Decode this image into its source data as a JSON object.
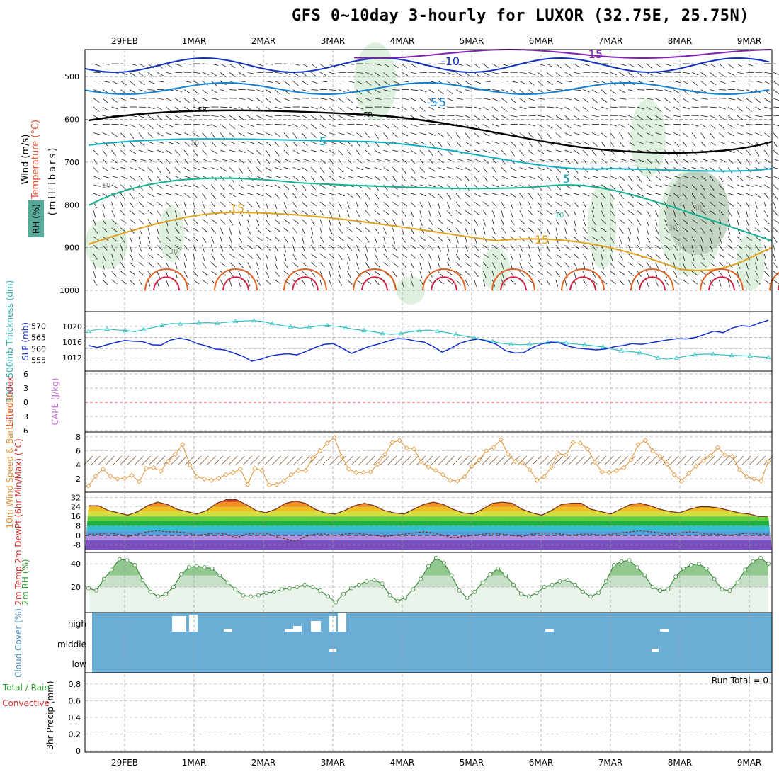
{
  "title": "GFS 0~10day 3-hourly for LUXOR (32.75E, 25.75N)",
  "dates": [
    "29FEB",
    "1MAR",
    "2MAR",
    "3MAR",
    "4MAR",
    "5MAR",
    "6MAR",
    "7MAR",
    "8MAR",
    "9MAR"
  ],
  "colors": {
    "wind_barb": "#000000",
    "temp_warm": "#e0a020",
    "temp_hot": "#e06020",
    "temp_cold": "#1030c0",
    "rh_shade": "#d8eed8",
    "thickness": "#30c0c0",
    "slp": "#1030d0",
    "wind10": "#e09030",
    "cloud": "#6aaed6",
    "rh2m": "#7ab87a"
  },
  "chart_data": {
    "type": "line",
    "upper_air": {
      "ylabel": "(millibars)",
      "side_labels": [
        "Wind (m/s)",
        "Temperature (°C)",
        "RH (%)"
      ],
      "y_ticks": [
        500,
        600,
        700,
        800,
        900,
        1000
      ],
      "contour_labels": [
        "-15",
        "-10",
        "-5",
        "-5",
        "5",
        "5",
        "10",
        "15",
        "15",
        "FR",
        "FR",
        "10",
        "10",
        "30",
        "30",
        "30"
      ]
    },
    "thickness_slp": {
      "left_label": "1000-500mb Thickness (dm)",
      "right_label": "SLP (mb)",
      "left_ticks": [
        555,
        560,
        565,
        570
      ],
      "right_ticks": [
        1012,
        1016,
        1020
      ],
      "thickness_dm": [
        567.8,
        568.6,
        568.8,
        568.4,
        568.2,
        567.6,
        568.6,
        569.4,
        570.4,
        571.2,
        571.1,
        571.2,
        571.5,
        571.6,
        571.4,
        571.8,
        572.2,
        572.4,
        572.5,
        572.1,
        571.2,
        570.4,
        569.8,
        569.2,
        569.6,
        570.2,
        570.4,
        570.0,
        569.4,
        568.6,
        568.2,
        567.6,
        566.8,
        566.4,
        566.8,
        567.6,
        568.1,
        568.3,
        567.8,
        567.2,
        566.4,
        565.6,
        564.9,
        564.0,
        563.2,
        562.4,
        562.0,
        561.8,
        562.0,
        562.3,
        562.8,
        563.1,
        562.6,
        562.1,
        561.8,
        561.3,
        560.8,
        559.9,
        559.1,
        558.8,
        558.3,
        557.3,
        556.0,
        555.4,
        556.0,
        556.7,
        557.4,
        557.7,
        557.6,
        557.3,
        557.1,
        557.0,
        556.8,
        556.4,
        556.2
      ],
      "slp_mb": [
        1015.1,
        1014.6,
        1015.3,
        1015.9,
        1016.4,
        1016.2,
        1016.1,
        1015.3,
        1015.2,
        1016.5,
        1017.0,
        1016.6,
        1015.6,
        1015.0,
        1014.2,
        1014.0,
        1013.2,
        1012.4,
        1011.1,
        1011.6,
        1012.4,
        1012.8,
        1013.0,
        1012.7,
        1013.6,
        1014.6,
        1015.4,
        1015.6,
        1014.4,
        1013.1,
        1014.0,
        1014.9,
        1015.5,
        1016.2,
        1016.9,
        1016.8,
        1016.3,
        1016.0,
        1014.9,
        1013.4,
        1014.4,
        1015.7,
        1016.4,
        1016.8,
        1016.2,
        1015.4,
        1013.8,
        1013.2,
        1013.3,
        1014.6,
        1015.5,
        1016.0,
        1015.7,
        1014.9,
        1014.4,
        1014.2,
        1014.0,
        1014.2,
        1014.8,
        1015.1,
        1015.6,
        1015.4,
        1015.8,
        1016.2,
        1016.6,
        1016.9,
        1016.8,
        1017.2,
        1018.0,
        1018.8,
        1018.4,
        1019.6,
        1020.2,
        1020.0,
        1020.9,
        1021.6
      ]
    },
    "stability": {
      "left_label": "Lifted Index",
      "right_label": "CAPE (J/kg)",
      "left_ticks": [
        -6,
        -3,
        0,
        3,
        6
      ],
      "lifted_index": 0
    },
    "wind10m": {
      "label": "10m Wind Speed & Barbs (m/s)",
      "y_ticks": [
        2,
        4,
        6,
        8
      ],
      "speed": [
        1.0,
        2.4,
        3.4,
        2.4,
        2.0,
        2.1,
        2.5,
        1.6,
        3.5,
        3.6,
        3.1,
        4.5,
        5.5,
        6.9,
        4.0,
        2.3,
        2.0,
        1.8,
        2.1,
        2.6,
        2.9,
        3.4,
        1.2,
        3.5,
        3.2,
        1.1,
        1.2,
        1.7,
        2.6,
        3.2,
        3.2,
        5.0,
        6.0,
        7.1,
        7.9,
        5.2,
        3.4,
        2.9,
        2.9,
        3.0,
        4.1,
        5.5,
        7.2,
        7.5,
        6.4,
        6.3,
        4.4,
        3.7,
        3.2,
        2.6,
        1.8,
        1.7,
        2.3,
        3.8,
        4.7,
        6.0,
        6.5,
        7.6,
        5.5,
        4.5,
        4.3,
        3.3,
        1.8,
        2.3,
        3.7,
        5.6,
        5.4,
        7.2,
        7.1,
        6.3,
        4.4,
        3.0,
        2.9,
        3.2,
        3.6,
        4.7,
        6.9,
        7.5,
        6.0,
        5.2,
        4.1,
        2.6,
        1.7,
        2.8,
        3.8,
        4.6,
        5.3,
        6.5,
        5.4,
        5.2,
        3.3,
        2.3,
        2.0,
        1.7,
        4.5
      ]
    },
    "temp2m": {
      "label": "2m Temp 2m DewPt (6hr Min/Max) (°C)",
      "y_ticks": [
        -8,
        0,
        8,
        16,
        24,
        32
      ],
      "temp": [
        25,
        25,
        21,
        19,
        17,
        20,
        25,
        28,
        26,
        22,
        20,
        18,
        21,
        27,
        30,
        30,
        26,
        21,
        19,
        22,
        27,
        29,
        27,
        22,
        19,
        18,
        21,
        25,
        27,
        25,
        21,
        19,
        18,
        22,
        26,
        28,
        26,
        22,
        19,
        18,
        22,
        27,
        28,
        27,
        22,
        19,
        17,
        21,
        26,
        27,
        27,
        22,
        20,
        18,
        22,
        26,
        27,
        25,
        22,
        20,
        19,
        22,
        24,
        24,
        23,
        21,
        19,
        18,
        16,
        16
      ],
      "dewpt": [
        1,
        1,
        2,
        1,
        -1,
        1,
        3,
        4,
        3,
        3,
        2,
        0,
        1,
        2,
        1,
        -2,
        1,
        2,
        2,
        -1,
        -3,
        -5,
        -1,
        1,
        1,
        0,
        1,
        2,
        1,
        0,
        -1,
        0,
        1,
        2,
        3,
        2,
        0,
        -2,
        -1,
        0,
        1,
        2,
        1,
        0,
        -1,
        1,
        2,
        2,
        1,
        0,
        1,
        1,
        0,
        1,
        2,
        3,
        4,
        3,
        2,
        1,
        2,
        3,
        2,
        1,
        1,
        0,
        1,
        2,
        1,
        1
      ]
    },
    "rh2m": {
      "label": "2m RH (%)",
      "y_ticks": [
        20,
        40
      ],
      "values": [
        19,
        17,
        27,
        35,
        44,
        43,
        39,
        26,
        16,
        12,
        14,
        20,
        31,
        37,
        38,
        37,
        36,
        30,
        24,
        18,
        13,
        12,
        13,
        15,
        16,
        18,
        19,
        20,
        22,
        20,
        17,
        12,
        7,
        14,
        19,
        22,
        25,
        26,
        23,
        13,
        8,
        11,
        18,
        27,
        38,
        45,
        41,
        30,
        17,
        11,
        16,
        24,
        31,
        36,
        30,
        22,
        14,
        12,
        15,
        20,
        22,
        25,
        26,
        22,
        16,
        12,
        15,
        25,
        39,
        42,
        43,
        37,
        30,
        20,
        17,
        18,
        29,
        36,
        39,
        40,
        36,
        27,
        18,
        17,
        24,
        35,
        42,
        45,
        40
      ]
    },
    "cloud": {
      "label": "Cloud Cover (%)",
      "levels": [
        "high",
        "middle",
        "low"
      ]
    },
    "precip": {
      "label": "3hr Precip (mm)",
      "side_labels": [
        "Total / Rain",
        "Convective"
      ],
      "y_ticks": [
        0,
        0.2,
        0.4,
        0.6,
        0.8
      ],
      "run_total_text": "Run Total = 0",
      "values": [
        0,
        0,
        0,
        0,
        0,
        0,
        0,
        0,
        0,
        0
      ]
    }
  }
}
